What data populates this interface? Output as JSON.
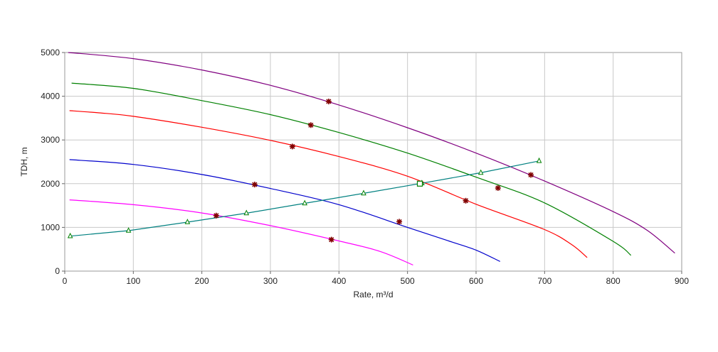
{
  "chart_data": {
    "type": "line",
    "title": "",
    "xlabel": "Rate, m³/d",
    "ylabel": "TDH, m",
    "xlim": [
      0,
      900
    ],
    "ylim": [
      0,
      5000
    ],
    "xticks": [
      0,
      100,
      200,
      300,
      400,
      500,
      600,
      700,
      800,
      900
    ],
    "yticks": [
      0,
      1000,
      2000,
      3000,
      4000,
      5000
    ],
    "grid": true,
    "legend": "none",
    "series": [
      {
        "color": "#800080",
        "x": [
          5,
          100,
          200,
          300,
          400,
          500,
          600,
          700,
          800,
          850,
          890
        ],
        "y": [
          5000,
          4860,
          4600,
          4250,
          3800,
          3280,
          2700,
          2060,
          1360,
          930,
          410
        ]
      },
      {
        "color": "#008000",
        "x": [
          10,
          100,
          200,
          300,
          400,
          500,
          600,
          700,
          800,
          826
        ],
        "y": [
          4300,
          4180,
          3900,
          3580,
          3170,
          2700,
          2150,
          1560,
          680,
          360
        ]
      },
      {
        "color": "#ff0000",
        "x": [
          7,
          50,
          100,
          200,
          300,
          400,
          500,
          600,
          700,
          740,
          762
        ],
        "y": [
          3670,
          3620,
          3540,
          3290,
          2990,
          2620,
          2170,
          1530,
          950,
          600,
          310
        ]
      },
      {
        "color": "#0000cc",
        "x": [
          7,
          100,
          200,
          300,
          400,
          500,
          560,
          600,
          635
        ],
        "y": [
          2550,
          2440,
          2210,
          1890,
          1520,
          1000,
          690,
          480,
          220
        ]
      },
      {
        "color": "#ff00ff",
        "x": [
          7,
          100,
          200,
          300,
          400,
          460,
          508
        ],
        "y": [
          1630,
          1520,
          1330,
          1040,
          690,
          450,
          140
        ]
      },
      {
        "color": "#008080",
        "marker": "triangle",
        "x": [
          8,
          93,
          179,
          265,
          350,
          436,
          521,
          607,
          692
        ],
        "y": [
          800,
          925,
          1120,
          1325,
          1550,
          1780,
          2010,
          2250,
          2520
        ]
      }
    ],
    "star_markers": {
      "color": "#800000",
      "x": [
        385,
        359,
        332,
        277,
        221,
        389,
        488,
        632,
        585,
        680
      ],
      "y": [
        3880,
        3340,
        2850,
        1980,
        1270,
        720,
        1130,
        1900,
        1610,
        2200
      ]
    },
    "operating_point": {
      "color": "#008000",
      "marker": "square",
      "x": 518,
      "y": 2000
    }
  }
}
